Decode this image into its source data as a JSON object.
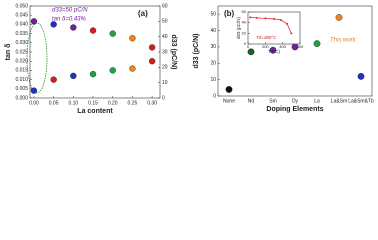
{
  "chart_data": [
    {
      "type": "scatter",
      "panel_label": "(a)",
      "xlabel": "La content",
      "ylabel": "tan δ",
      "y2label": "d33 (pC/N)",
      "x": [
        0.0,
        0.05,
        0.1,
        0.15,
        0.2,
        0.25,
        0.3
      ],
      "xlim": [
        -0.01,
        0.32
      ],
      "xticks": [
        {
          "value": 0,
          "label": "0.00"
        },
        {
          "value": 0.05,
          "label": "0.05"
        },
        {
          "value": 0.1,
          "label": "0.10"
        },
        {
          "value": 0.15,
          "label": "0.15"
        },
        {
          "value": 0.2,
          "label": "0.20"
        },
        {
          "value": 0.25,
          "label": "0.25"
        },
        {
          "value": 0.3,
          "label": "0.30"
        }
      ],
      "ylim": [
        0,
        0.05
      ],
      "yticks": [
        {
          "value": 0,
          "label": "0.000"
        },
        {
          "value": 0.005,
          "label": "0.005"
        },
        {
          "value": 0.01,
          "label": "0.010"
        },
        {
          "value": 0.015,
          "label": "0.015"
        },
        {
          "value": 0.02,
          "label": "0.020"
        },
        {
          "value": 0.025,
          "label": "0.025"
        },
        {
          "value": 0.03,
          "label": "0.030"
        },
        {
          "value": 0.035,
          "label": "0.035"
        },
        {
          "value": 0.04,
          "label": "0.040"
        },
        {
          "value": 0.045,
          "label": "0.045"
        },
        {
          "value": 0.05,
          "label": "0.050"
        }
      ],
      "y2lim": [
        0,
        60
      ],
      "y2ticks": [
        0,
        10,
        20,
        30,
        40,
        50,
        60
      ],
      "series": [
        {
          "colors": [
            "#2030c0",
            "#d02020",
            "#2030c0",
            "#20a040",
            "#20a040",
            "#f08020",
            "#d02020"
          ],
          "values": [
            0.004,
            0.01,
            0.012,
            0.013,
            0.015,
            0.016,
            0.02
          ]
        },
        {
          "axis": "y2",
          "colors": [
            "#7020a0",
            "#2030c0",
            "#7020a0",
            "#d02020",
            "#20a040",
            "#f08020",
            "#d02020"
          ],
          "values": [
            50,
            48,
            46,
            44,
            42,
            39,
            33
          ]
        }
      ],
      "annotations": [
        "d33=50 pC/N",
        "tan δ=0.43%"
      ]
    },
    {
      "type": "scatter",
      "panel_label": "(b)",
      "xlabel": "Doping Elements",
      "ylabel": "d33 (pC/N)",
      "categories": [
        "None",
        "Nd",
        "Sm",
        "Dy",
        "La",
        "La&Sm",
        "La&Sm&Tb"
      ],
      "values": [
        4,
        27,
        28,
        30,
        32,
        48,
        12
      ],
      "colors": [
        "#111111",
        "#1a6030",
        "#7020a0",
        "#7020a0",
        "#20a040",
        "#f08020",
        "#2030c0"
      ],
      "ylim": [
        0,
        55
      ],
      "yticks": [
        0,
        10,
        20,
        30,
        40,
        50
      ],
      "annotations": [
        "This work"
      ]
    },
    {
      "type": "line",
      "xlabel": "T (°C)",
      "ylabel": "d33 (pC/N)",
      "color": "#e03030",
      "x": [
        25,
        100,
        200,
        300,
        380,
        450,
        500
      ],
      "values": [
        50,
        49,
        48,
        47,
        45,
        38,
        20
      ],
      "xlim": [
        0,
        600
      ],
      "xticks": [
        0,
        200,
        400,
        600
      ],
      "ylim": [
        0,
        60
      ],
      "yticks": [
        0,
        20,
        40,
        60
      ],
      "annotations": [
        "Td=380°C"
      ]
    }
  ]
}
